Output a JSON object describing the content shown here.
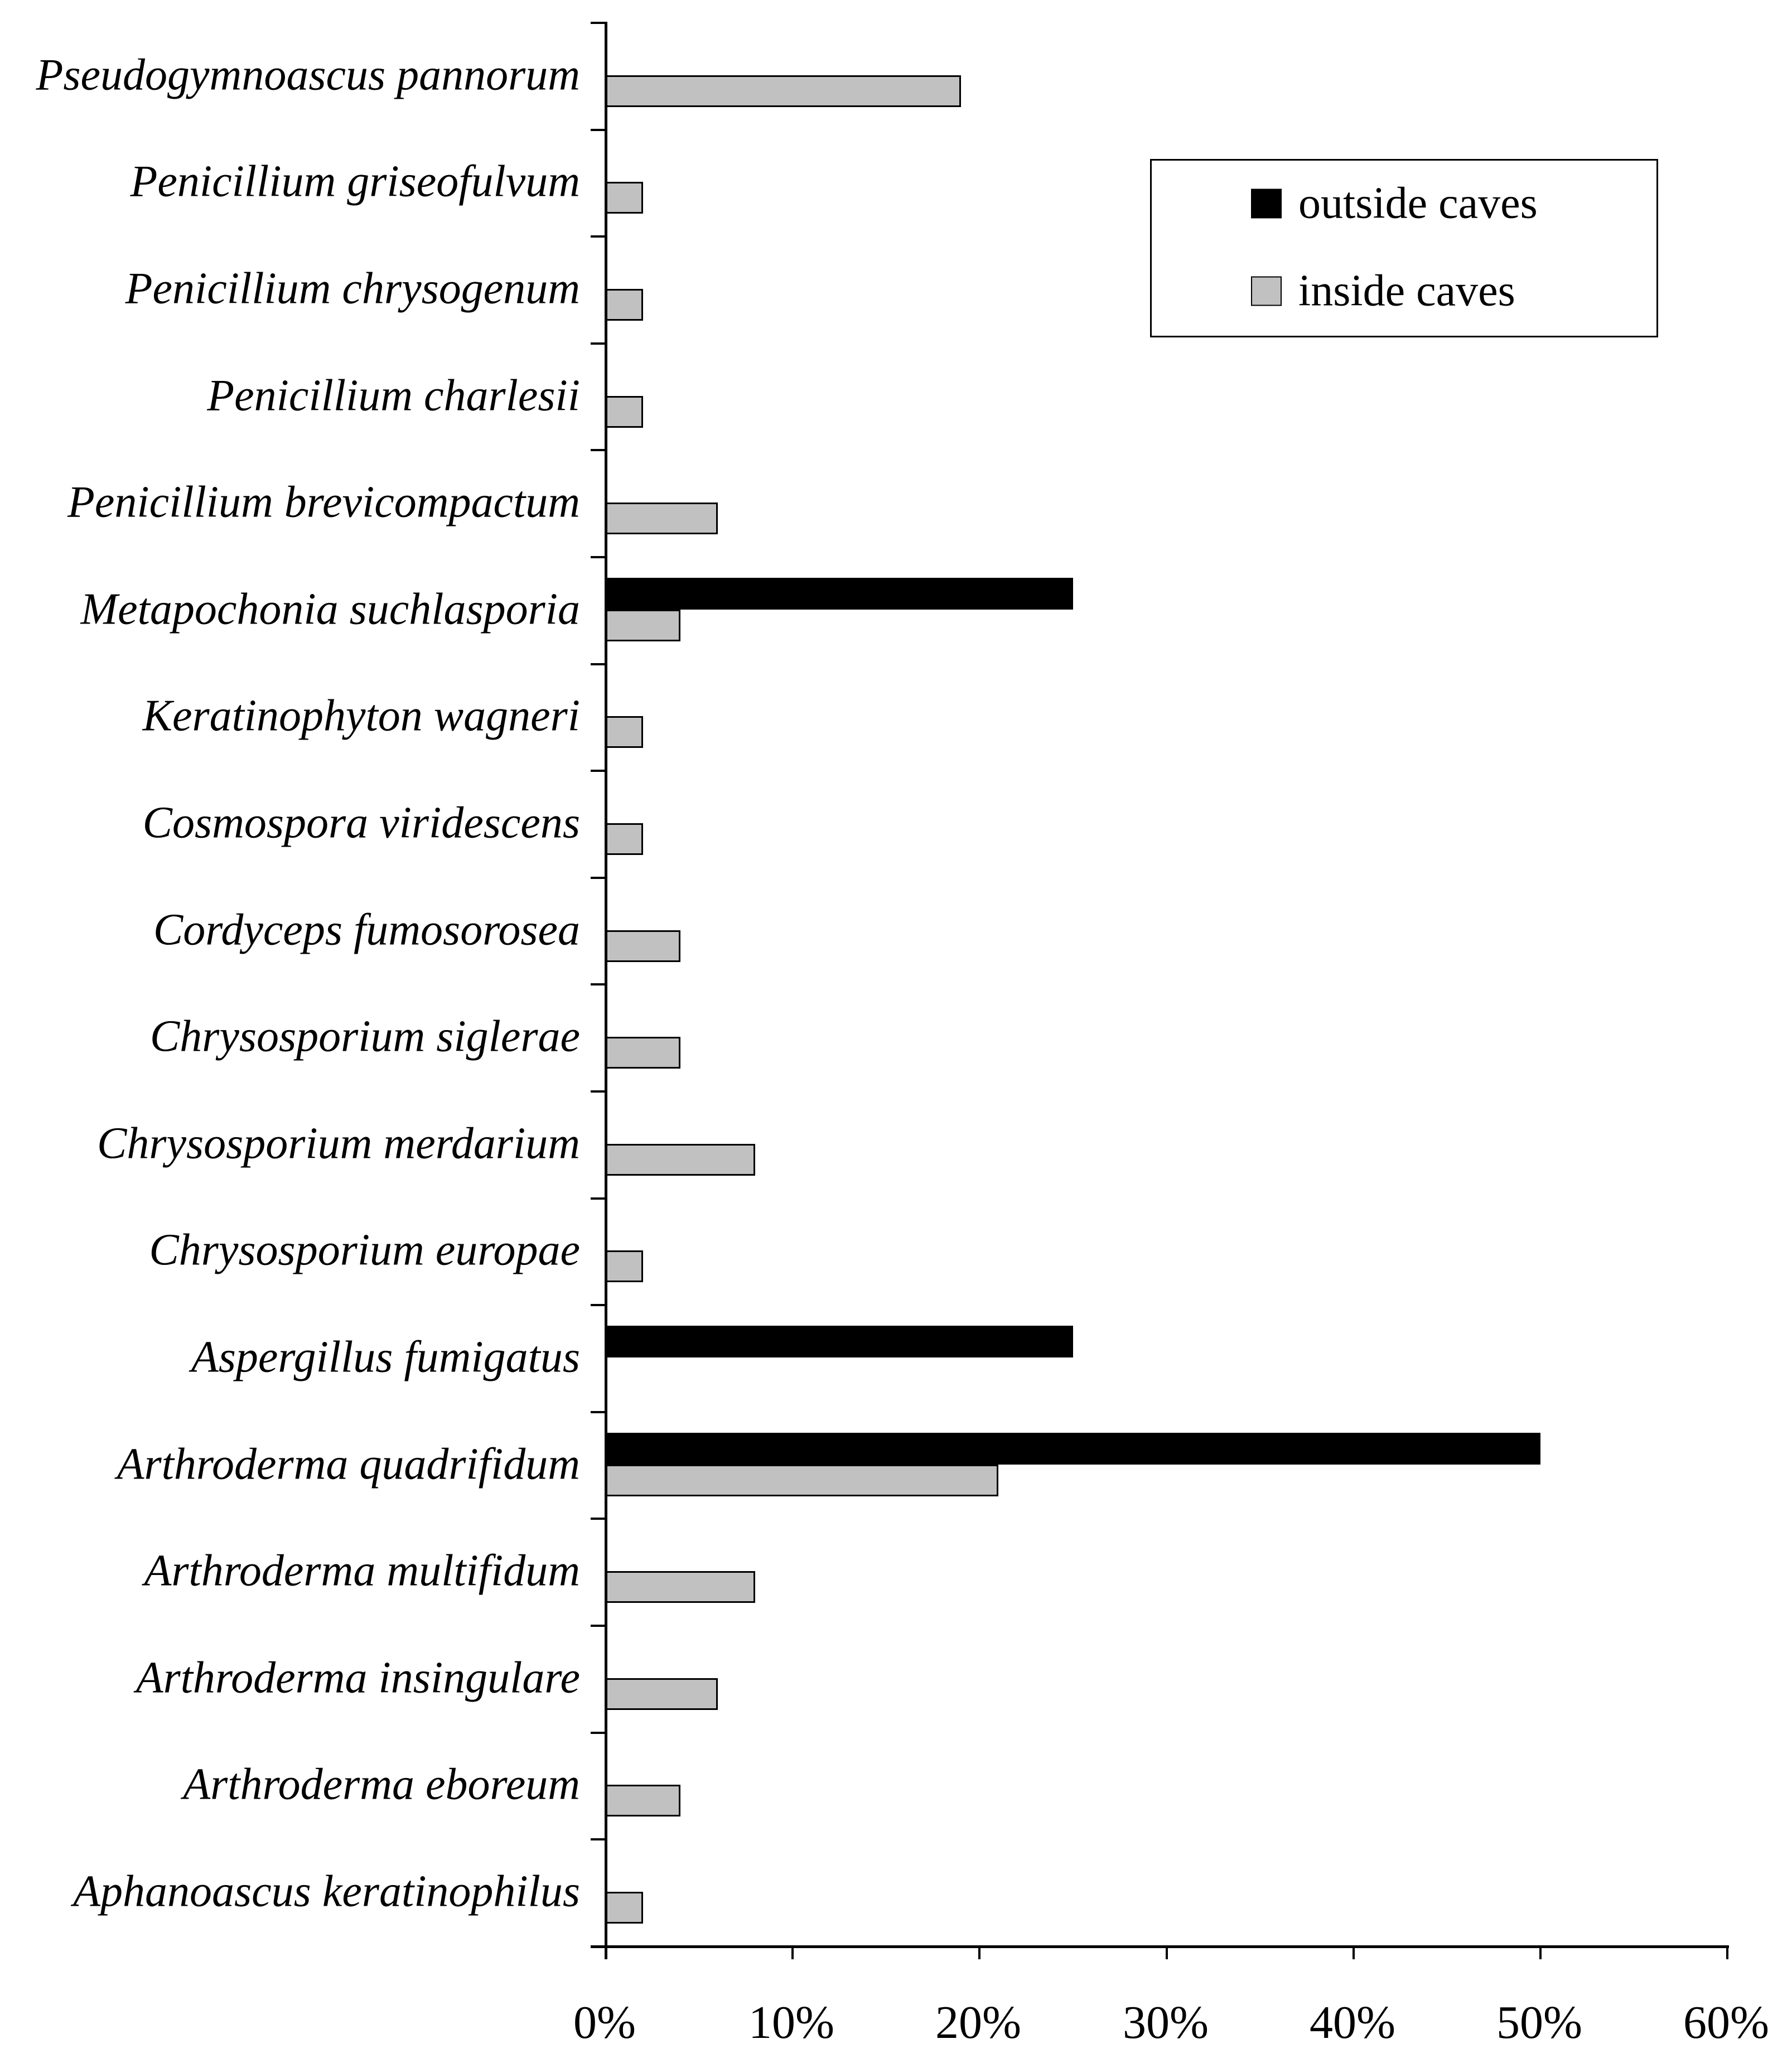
{
  "chart_data": {
    "type": "bar",
    "orientation": "horizontal",
    "title": "",
    "xlabel": "",
    "ylabel": "",
    "categories": [
      "Pseudogymnoascus pannorum",
      "Penicillium griseofulvum",
      "Penicillium chrysogenum",
      "Penicillium charlesii",
      "Penicillium brevicompactum",
      "Metapochonia suchlasporia",
      "Keratinophyton wagneri",
      "Cosmospora viridescens",
      "Cordyceps fumosorosea",
      "Chrysosporium siglerae",
      "Chrysosporium merdarium",
      "Chrysosporium europae",
      "Aspergillus fumigatus",
      "Arthroderma quadrifidum",
      "Arthroderma multifidum",
      "Arthroderma insingulare",
      "Arthroderma eboreum",
      "Aphanoascus keratinophilus"
    ],
    "series": [
      {
        "name": "outside caves",
        "color": "#000000",
        "values": [
          0,
          0,
          0,
          0,
          0,
          25,
          0,
          0,
          0,
          0,
          0,
          0,
          25,
          50,
          0,
          0,
          0,
          0
        ]
      },
      {
        "name": "inside caves",
        "color": "#c1c1c1",
        "values": [
          19,
          2,
          2,
          2,
          6,
          4,
          2,
          2,
          4,
          4,
          8,
          2,
          0,
          21,
          8,
          6,
          4,
          2
        ]
      }
    ],
    "x_axis": {
      "tick_labels": [
        "0%",
        "10%",
        "20%",
        "30%",
        "40%",
        "50%",
        "60%"
      ],
      "min": 0,
      "max": 60,
      "unit": "%"
    },
    "legend": {
      "position": "upper-right",
      "entries": [
        "outside caves",
        "inside caves"
      ]
    },
    "grid": false
  }
}
